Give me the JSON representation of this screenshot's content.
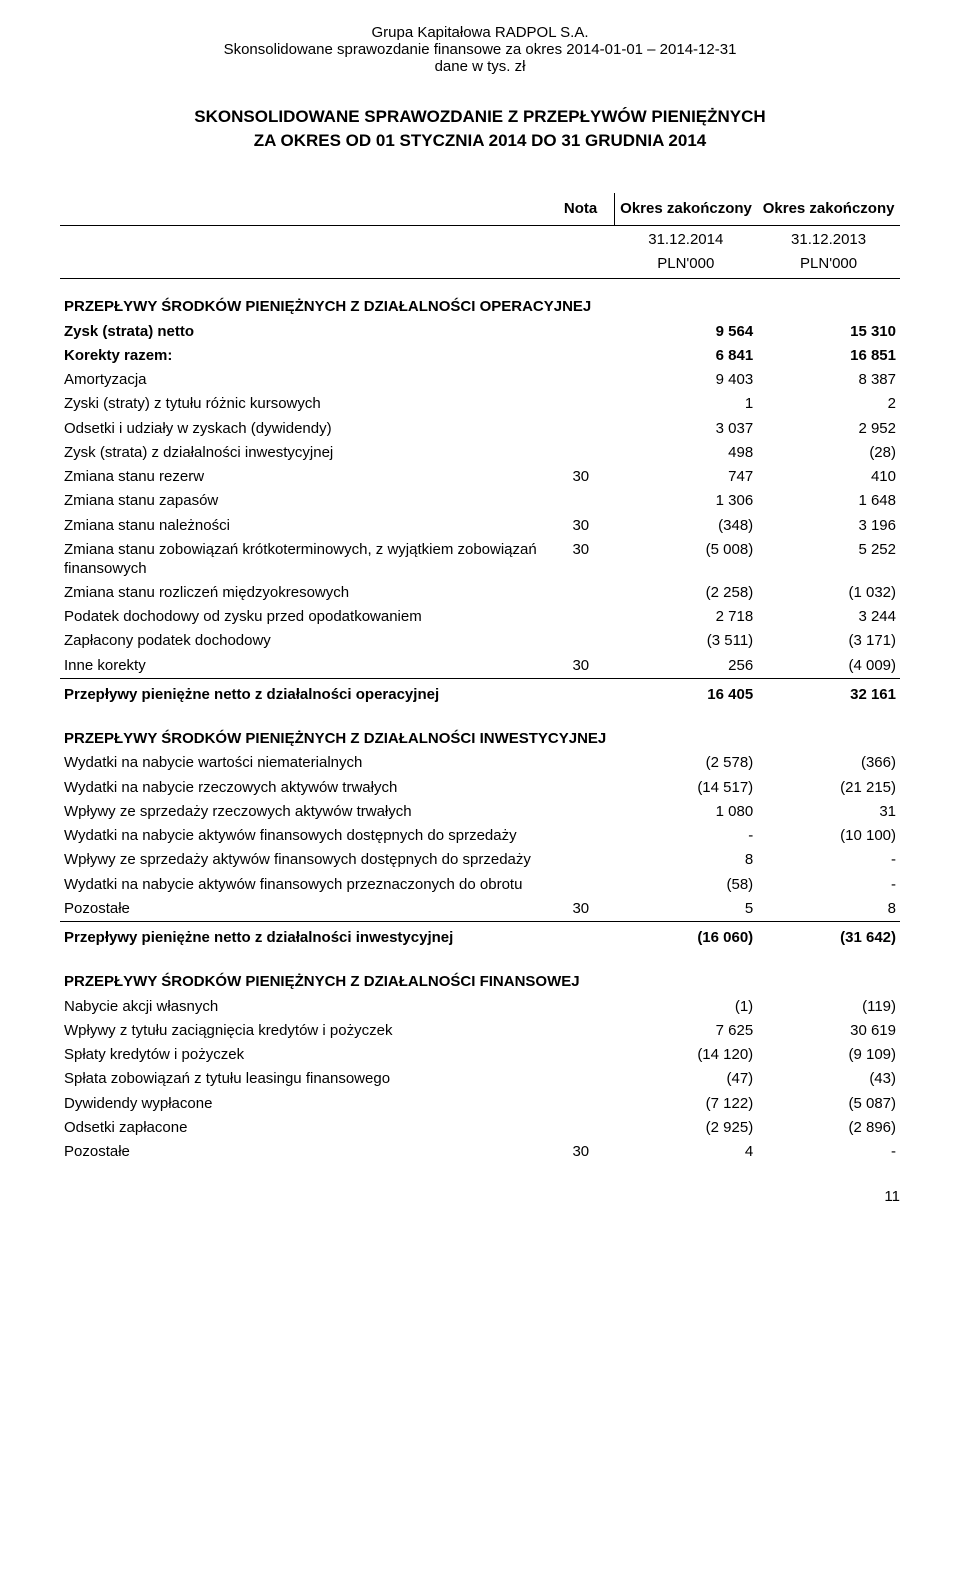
{
  "header": {
    "line1": "Grupa Kapitałowa RADPOL S.A.",
    "line2": "Skonsolidowane sprawozdanie finansowe za okres 2014-01-01 – 2014-12-31",
    "line3": "dane w tys. zł"
  },
  "title": {
    "line1": "SKONSOLIDOWANE SPRAWOZDANIE Z PRZEPŁYWÓW PIENIĘŻNYCH",
    "line2": "ZA OKRES OD 01 STYCZNIA 2014 DO 31 GRUDNIA 2014"
  },
  "columns": {
    "nota": "Nota",
    "period1": "Okres zakończony",
    "period2": "Okres zakończony",
    "date1": "31.12.2014",
    "date2": "31.12.2013",
    "unit1": "PLN'000",
    "unit2": "PLN'000"
  },
  "sections": {
    "op": {
      "header": "PRZEPŁYWY ŚRODKÓW PIENIĘŻNYCH Z DZIAŁALNOŚCI OPERACYJNEJ",
      "rows": [
        {
          "label": "Zysk (strata) netto",
          "nota": "",
          "v1": "9 564",
          "v2": "15 310",
          "bold": true
        },
        {
          "label": "Korekty razem:",
          "nota": "",
          "v1": "6 841",
          "v2": "16 851",
          "bold": true
        },
        {
          "label": "Amortyzacja",
          "nota": "",
          "v1": "9 403",
          "v2": "8 387"
        },
        {
          "label": "Zyski (straty) z tytułu różnic kursowych",
          "nota": "",
          "v1": "1",
          "v2": "2"
        },
        {
          "label": "Odsetki i udziały w zyskach (dywidendy)",
          "nota": "",
          "v1": "3 037",
          "v2": "2 952"
        },
        {
          "label": "Zysk (strata) z działalności inwestycyjnej",
          "nota": "",
          "v1": "498",
          "v2": "(28)"
        },
        {
          "label": "Zmiana stanu rezerw",
          "nota": "30",
          "v1": "747",
          "v2": "410"
        },
        {
          "label": "Zmiana stanu zapasów",
          "nota": "",
          "v1": "1 306",
          "v2": "1 648"
        },
        {
          "label": "Zmiana stanu należności",
          "nota": "30",
          "v1": "(348)",
          "v2": "3 196"
        },
        {
          "label": "Zmiana stanu zobowiązań krótkoterminowych, z wyjątkiem zobowiązań finansowych",
          "nota": "30",
          "v1": "(5 008)",
          "v2": "5 252"
        },
        {
          "label": "Zmiana stanu rozliczeń międzyokresowych",
          "nota": "",
          "v1": "(2 258)",
          "v2": "(1 032)"
        },
        {
          "label": "Podatek dochodowy od zysku przed opodatkowaniem",
          "nota": "",
          "v1": "2 718",
          "v2": "3 244"
        },
        {
          "label": "Zapłacony podatek dochodowy",
          "nota": "",
          "v1": "(3 511)",
          "v2": "(3 171)"
        },
        {
          "label": "Inne korekty",
          "nota": "30",
          "v1": "256",
          "v2": "(4 009)"
        }
      ],
      "subtotal": {
        "label": "Przepływy pieniężne netto z działalności operacyjnej",
        "v1": "16 405",
        "v2": "32 161"
      }
    },
    "inv": {
      "header": "PRZEPŁYWY ŚRODKÓW PIENIĘŻNYCH Z DZIAŁALNOŚCI INWESTYCYJNEJ",
      "rows": [
        {
          "label": "Wydatki na nabycie wartości niematerialnych",
          "nota": "",
          "v1": "(2 578)",
          "v2": "(366)"
        },
        {
          "label": "Wydatki na nabycie rzeczowych aktywów trwałych",
          "nota": "",
          "v1": "(14 517)",
          "v2": "(21 215)"
        },
        {
          "label": "Wpływy ze sprzedaży rzeczowych aktywów trwałych",
          "nota": "",
          "v1": "1 080",
          "v2": "31"
        },
        {
          "label": "Wydatki na nabycie aktywów finansowych dostępnych do sprzedaży",
          "nota": "",
          "v1": "-",
          "v2": "(10 100)"
        },
        {
          "label": "Wpływy ze sprzedaży aktywów finansowych dostępnych do sprzedaży",
          "nota": "",
          "v1": "8",
          "v2": "-"
        },
        {
          "label": "Wydatki na nabycie aktywów finansowych przeznaczonych do obrotu",
          "nota": "",
          "v1": "(58)",
          "v2": "-"
        },
        {
          "label": "Pozostałe",
          "nota": "30",
          "v1": "5",
          "v2": "8"
        }
      ],
      "subtotal": {
        "label": "Przepływy pieniężne netto z działalności inwestycyjnej",
        "v1": "(16 060)",
        "v2": "(31 642)"
      }
    },
    "fin": {
      "header": "PRZEPŁYWY ŚRODKÓW PIENIĘŻNYCH Z DZIAŁALNOŚCI FINANSOWEJ",
      "rows": [
        {
          "label": "Nabycie akcji własnych",
          "nota": "",
          "v1": "(1)",
          "v2": "(119)"
        },
        {
          "label": "Wpływy z tytułu zaciągnięcia kredytów i pożyczek",
          "nota": "",
          "v1": "7 625",
          "v2": "30 619"
        },
        {
          "label": "Spłaty kredytów i pożyczek",
          "nota": "",
          "v1": "(14 120)",
          "v2": "(9 109)"
        },
        {
          "label": "Spłata zobowiązań z tytułu leasingu finansowego",
          "nota": "",
          "v1": "(47)",
          "v2": "(43)"
        },
        {
          "label": "Dywidendy wypłacone",
          "nota": "",
          "v1": "(7 122)",
          "v2": "(5 087)"
        },
        {
          "label": "Odsetki zapłacone",
          "nota": "",
          "v1": "(2 925)",
          "v2": "(2 896)"
        },
        {
          "label": "Pozostałe",
          "nota": "30",
          "v1": "4",
          "v2": "-"
        }
      ]
    }
  },
  "page_number": "11"
}
